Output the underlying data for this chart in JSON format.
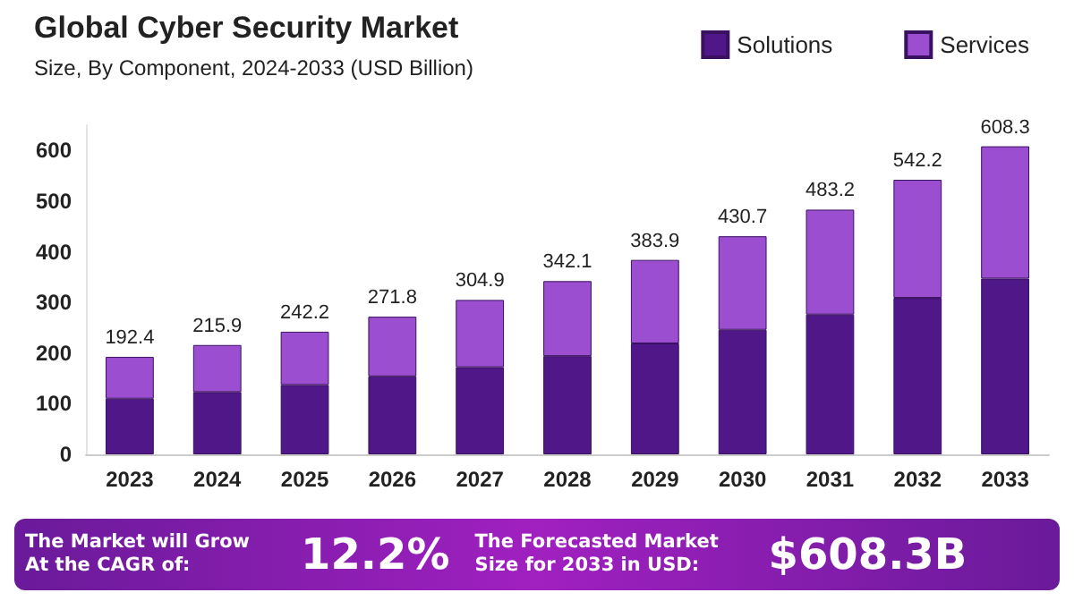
{
  "chart_data": {
    "type": "bar",
    "title": "Global Cyber Security Market",
    "subtitle": "Size, By Component, 2024-2033 (USD Billion)",
    "categories": [
      "2023",
      "2024",
      "2025",
      "2026",
      "2027",
      "2028",
      "2029",
      "2030",
      "2031",
      "2032",
      "2033"
    ],
    "series": [
      {
        "name": "Solutions",
        "color": "#4f1787",
        "values": [
          110,
          123,
          137,
          154,
          172,
          194,
          219,
          246,
          276,
          309,
          347
        ]
      },
      {
        "name": "Services",
        "color": "#9b4fd0",
        "values": [
          82.4,
          92.9,
          105.2,
          117.8,
          132.9,
          148.1,
          164.9,
          184.7,
          207.2,
          233.2,
          261.3
        ]
      }
    ],
    "stacked": true,
    "totals": [
      "192.4",
      "215.9",
      "242.2",
      "271.8",
      "304.9",
      "342.1",
      "383.9",
      "430.7",
      "483.2",
      "542.2",
      "608.3"
    ],
    "ylim": [
      0,
      650
    ],
    "yticks": [
      0,
      100,
      200,
      300,
      400,
      500,
      600
    ],
    "grid": false,
    "legend": "top right",
    "annotations": [
      "The Market will Grow At the CAGR of:",
      "12.2%",
      "The Forecasted Market Size for 2033 in USD:",
      "$608.3B"
    ]
  }
}
